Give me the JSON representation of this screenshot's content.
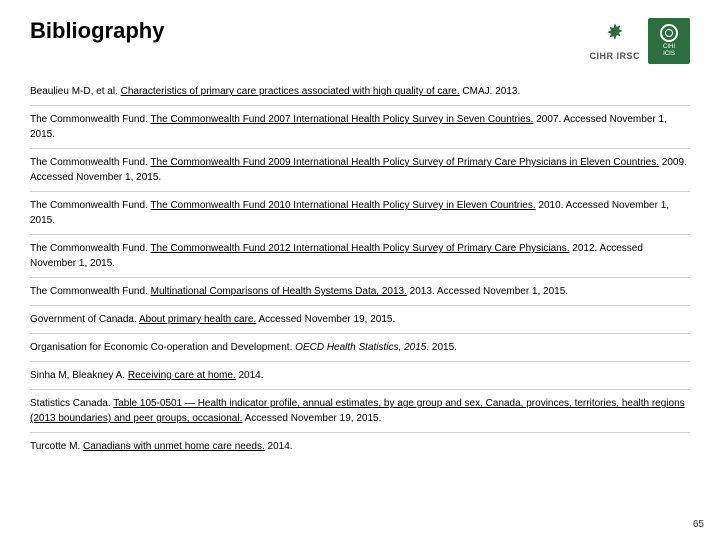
{
  "title": "Bibliography",
  "logos": {
    "cihr_label": "CIHR IRSC",
    "cihi_line1": "CIHI",
    "cihi_line2": "ICIS"
  },
  "references": [
    {
      "pre": "Beaulieu M-D, et al. ",
      "link": "Characteristics of primary care practices associated with high quality of care.",
      "post": " CMAJ. 2013."
    },
    {
      "pre": "The Commonwealth Fund. ",
      "link": "The Commonwealth Fund 2007 International Health Policy Survey in Seven Countries.",
      "post": " 2007. Accessed November 1, 2015."
    },
    {
      "pre": "The Commonwealth Fund. ",
      "link": "The Commonwealth Fund 2009 International Health Policy Survey of Primary Care Physicians in Eleven Countries.",
      "post": " 2009. Accessed November 1, 2015."
    },
    {
      "pre": "The Commonwealth Fund. ",
      "link": "The Commonwealth Fund 2010 International Health Policy Survey in Eleven Countries.",
      "post": " 2010. Accessed November 1, 2015."
    },
    {
      "pre": "The Commonwealth Fund. ",
      "link": "The Commonwealth Fund 2012 International Health Policy Survey of Primary Care Physicians.",
      "post": " 2012. Accessed November 1, 2015."
    },
    {
      "pre": "The Commonwealth Fund. ",
      "link": "Multinational Comparisons of Health Systems Data, 2013.",
      "post": " 2013. Accessed November 1, 2015."
    },
    {
      "pre": "Government of Canada. ",
      "link": "About primary health care.",
      "post": " Accessed November 19, 2015."
    },
    {
      "pre": "Organisation for Economic Co-operation and Development. ",
      "link": "",
      "ital": "OECD Health Statistics, 2015.",
      "post": " 2015."
    },
    {
      "pre": "Sinha M, Bleakney A. ",
      "link": "Receiving care at home.",
      "post": " 2014."
    },
    {
      "pre": "Statistics Canada. ",
      "link": "Table 105-0501 — Health indicator profile, annual estimates, by age group and sex, Canada, provinces, territories, health regions (2013 boundaries) and peer groups, occasional.",
      "post": " Accessed November 19, 2015."
    },
    {
      "pre": "Turcotte M. ",
      "link": "Canadians with unmet home care needs.",
      "post": " 2014."
    }
  ],
  "page_number": "65",
  "colors": {
    "accent": "#2d6e3e",
    "divider": "#d0d0d0",
    "text": "#000000",
    "background": "#ffffff"
  }
}
